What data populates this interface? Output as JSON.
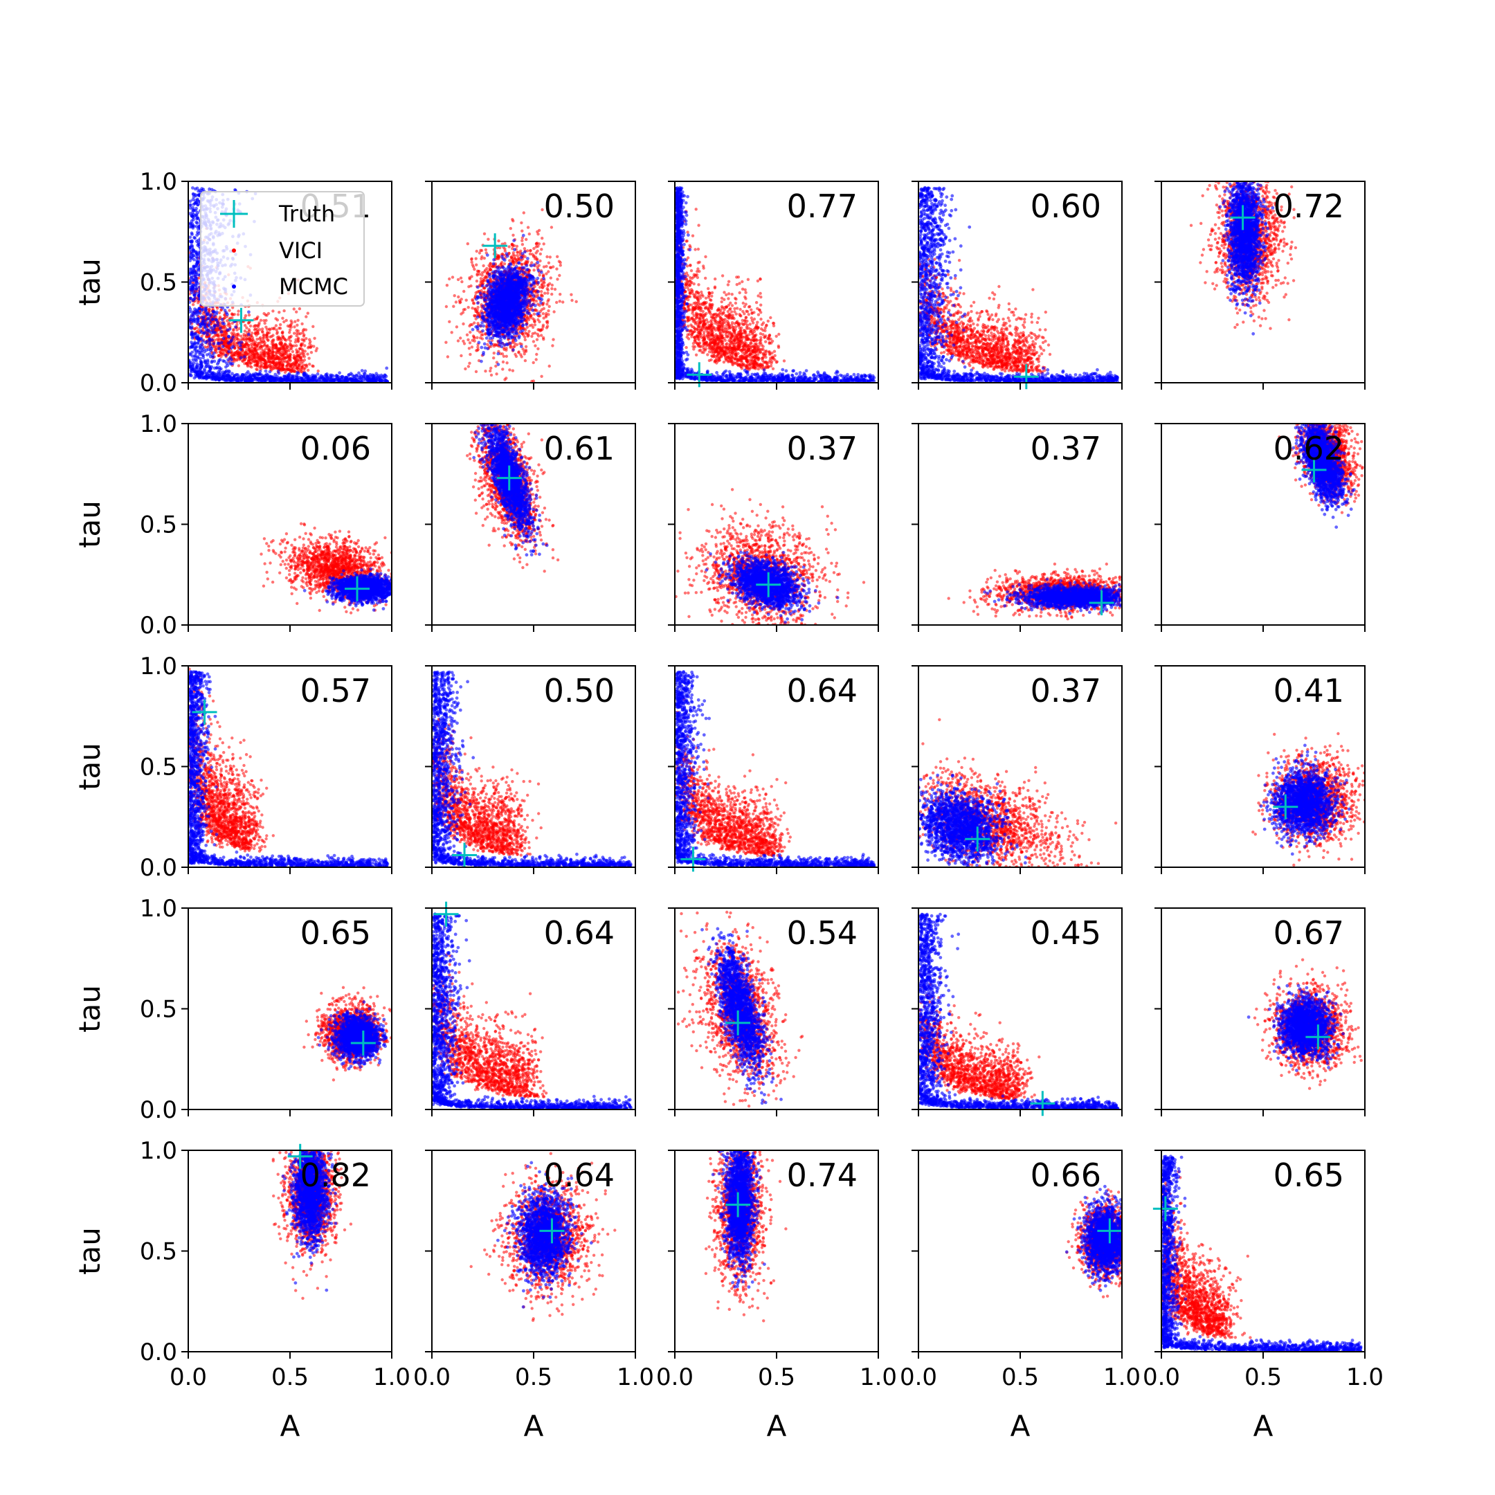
{
  "chart_data": {
    "type": "scatter",
    "layout": {
      "rows": 5,
      "cols": 5
    },
    "xlabel": "A",
    "ylabel": "tau",
    "xlim": [
      0.0,
      1.0
    ],
    "ylim": [
      0.0,
      1.0
    ],
    "xticks": [
      "0.0",
      "0.5",
      "1.0"
    ],
    "yticks": [
      "0.0",
      "0.5",
      "1.0"
    ],
    "legend": {
      "placement": "upper-left of first panel",
      "entries": [
        {
          "label": "Truth",
          "marker": "plus",
          "color": "#00bfbf"
        },
        {
          "label": "VICI",
          "marker": "dot",
          "color": "#ff0000"
        },
        {
          "label": "MCMC",
          "marker": "dot",
          "color": "#0000ff"
        }
      ]
    },
    "series_colors": {
      "truth": "#00bfbf",
      "vici": "#ff0000",
      "mcmc": "#0000ff"
    },
    "panels": [
      {
        "label": "0.51",
        "truth": [
          0.26,
          0.31
        ],
        "vici": {
          "shape": "lblob",
          "cx": 0.3,
          "cy": 0.3,
          "sx": 0.2,
          "sy": 0.2,
          "r": 0
        },
        "mcmc": {
          "shape": "lcurve",
          "cx": 0.1,
          "cy": 0.3,
          "sx": 0.15,
          "sy": 0.2,
          "r": 0
        }
      },
      {
        "label": "0.50",
        "truth": [
          0.31,
          0.68
        ],
        "vici": {
          "shape": "blob",
          "cx": 0.38,
          "cy": 0.42,
          "sx": 0.1,
          "sy": 0.14,
          "r": -0.2
        },
        "mcmc": {
          "shape": "blob",
          "cx": 0.37,
          "cy": 0.4,
          "sx": 0.05,
          "sy": 0.09,
          "r": -0.3
        }
      },
      {
        "label": "0.77",
        "truth": [
          0.12,
          0.04
        ],
        "vici": {
          "shape": "lblob",
          "cx": 0.2,
          "cy": 0.4,
          "sx": 0.18,
          "sy": 0.25,
          "r": 0
        },
        "mcmc": {
          "shape": "lcurve",
          "cx": 0.03,
          "cy": 0.5,
          "sx": 0.03,
          "sy": 0.3,
          "r": 0
        }
      },
      {
        "label": "0.60",
        "truth": [
          0.53,
          0.03
        ],
        "vici": {
          "shape": "lblob",
          "cx": 0.3,
          "cy": 0.3,
          "sx": 0.2,
          "sy": 0.2,
          "r": 0
        },
        "mcmc": {
          "shape": "lcurve",
          "cx": 0.08,
          "cy": 0.4,
          "sx": 0.1,
          "sy": 0.25,
          "r": 0
        }
      },
      {
        "label": "0.72",
        "truth": [
          0.4,
          0.82
        ],
        "vici": {
          "shape": "blob",
          "cx": 0.43,
          "cy": 0.72,
          "sx": 0.08,
          "sy": 0.15,
          "r": 0
        },
        "mcmc": {
          "shape": "blob",
          "cx": 0.41,
          "cy": 0.75,
          "sx": 0.04,
          "sy": 0.14,
          "r": 0
        }
      },
      {
        "label": "0.06",
        "truth": [
          0.83,
          0.18
        ],
        "vici": {
          "shape": "blob",
          "cx": 0.72,
          "cy": 0.28,
          "sx": 0.12,
          "sy": 0.07,
          "r": -0.2
        },
        "mcmc": {
          "shape": "blob",
          "cx": 0.86,
          "cy": 0.18,
          "sx": 0.07,
          "sy": 0.03,
          "r": 0
        }
      },
      {
        "label": "0.61",
        "truth": [
          0.38,
          0.73
        ],
        "vici": {
          "shape": "blob",
          "cx": 0.37,
          "cy": 0.72,
          "sx": 0.06,
          "sy": 0.16,
          "r": 0.3
        },
        "mcmc": {
          "shape": "blob",
          "cx": 0.38,
          "cy": 0.73,
          "sx": 0.035,
          "sy": 0.13,
          "r": 0.3
        }
      },
      {
        "label": "0.37",
        "truth": [
          0.46,
          0.2
        ],
        "vici": {
          "shape": "blob",
          "cx": 0.42,
          "cy": 0.25,
          "sx": 0.15,
          "sy": 0.12,
          "r": -0.35
        },
        "mcmc": {
          "shape": "blob",
          "cx": 0.45,
          "cy": 0.2,
          "sx": 0.08,
          "sy": 0.05,
          "r": -0.4
        }
      },
      {
        "label": "0.37",
        "truth": [
          0.9,
          0.11
        ],
        "vici": {
          "shape": "blob",
          "cx": 0.72,
          "cy": 0.16,
          "sx": 0.17,
          "sy": 0.045,
          "r": 0
        },
        "mcmc": {
          "shape": "blob",
          "cx": 0.76,
          "cy": 0.14,
          "sx": 0.12,
          "sy": 0.025,
          "r": 0
        }
      },
      {
        "label": "0.62",
        "truth": [
          0.75,
          0.77
        ],
        "vici": {
          "shape": "blob",
          "cx": 0.82,
          "cy": 0.85,
          "sx": 0.06,
          "sy": 0.11,
          "r": 0.3
        },
        "mcmc": {
          "shape": "blob",
          "cx": 0.79,
          "cy": 0.82,
          "sx": 0.04,
          "sy": 0.1,
          "r": 0.3
        }
      },
      {
        "label": "0.57",
        "truth": [
          0.08,
          0.77
        ],
        "vici": {
          "shape": "lblob",
          "cx": 0.15,
          "cy": 0.45,
          "sx": 0.12,
          "sy": 0.3,
          "r": 0
        },
        "mcmc": {
          "shape": "lcurve",
          "cx": 0.08,
          "cy": 0.5,
          "sx": 0.06,
          "sy": 0.3,
          "r": 0
        }
      },
      {
        "label": "0.50",
        "truth": [
          0.16,
          0.06
        ],
        "vici": {
          "shape": "lblob",
          "cx": 0.22,
          "cy": 0.35,
          "sx": 0.15,
          "sy": 0.25,
          "r": 0
        },
        "mcmc": {
          "shape": "lcurve",
          "cx": 0.06,
          "cy": 0.4,
          "sx": 0.08,
          "sy": 0.28,
          "r": 0
        }
      },
      {
        "label": "0.64",
        "truth": [
          0.09,
          0.04
        ],
        "vici": {
          "shape": "lblob",
          "cx": 0.25,
          "cy": 0.35,
          "sx": 0.18,
          "sy": 0.22,
          "r": 0
        },
        "mcmc": {
          "shape": "lcurve",
          "cx": 0.05,
          "cy": 0.4,
          "sx": 0.07,
          "sy": 0.28,
          "r": 0
        }
      },
      {
        "label": "0.37",
        "truth": [
          0.29,
          0.14
        ],
        "vici": {
          "shape": "blob",
          "cx": 0.35,
          "cy": 0.22,
          "sx": 0.2,
          "sy": 0.1,
          "r": -0.4
        },
        "mcmc": {
          "shape": "blob",
          "cx": 0.2,
          "cy": 0.2,
          "sx": 0.1,
          "sy": 0.08,
          "r": -0.4
        }
      },
      {
        "label": "0.41",
        "truth": [
          0.61,
          0.3
        ],
        "vici": {
          "shape": "blob",
          "cx": 0.75,
          "cy": 0.33,
          "sx": 0.1,
          "sy": 0.1,
          "r": 0
        },
        "mcmc": {
          "shape": "blob",
          "cx": 0.7,
          "cy": 0.32,
          "sx": 0.07,
          "sy": 0.08,
          "r": 0
        }
      },
      {
        "label": "0.65",
        "truth": [
          0.86,
          0.33
        ],
        "vici": {
          "shape": "blob",
          "cx": 0.8,
          "cy": 0.38,
          "sx": 0.07,
          "sy": 0.07,
          "r": -0.3
        },
        "mcmc": {
          "shape": "blob",
          "cx": 0.83,
          "cy": 0.36,
          "sx": 0.05,
          "sy": 0.05,
          "r": -0.3
        }
      },
      {
        "label": "0.64",
        "truth": [
          0.07,
          0.97
        ],
        "vici": {
          "shape": "lblob",
          "cx": 0.25,
          "cy": 0.35,
          "sx": 0.18,
          "sy": 0.25,
          "r": 0
        },
        "mcmc": {
          "shape": "lcurve",
          "cx": 0.05,
          "cy": 0.4,
          "sx": 0.08,
          "sy": 0.3,
          "r": 0
        }
      },
      {
        "label": "0.54",
        "truth": [
          0.31,
          0.43
        ],
        "vici": {
          "shape": "blob",
          "cx": 0.32,
          "cy": 0.48,
          "sx": 0.09,
          "sy": 0.18,
          "r": 0.25
        },
        "mcmc": {
          "shape": "blob",
          "cx": 0.32,
          "cy": 0.5,
          "sx": 0.04,
          "sy": 0.15,
          "r": 0.25
        }
      },
      {
        "label": "0.45",
        "truth": [
          0.61,
          0.03
        ],
        "vici": {
          "shape": "lblob",
          "cx": 0.25,
          "cy": 0.3,
          "sx": 0.18,
          "sy": 0.2,
          "r": 0
        },
        "mcmc": {
          "shape": "lcurve",
          "cx": 0.06,
          "cy": 0.4,
          "sx": 0.08,
          "sy": 0.28,
          "r": 0
        }
      },
      {
        "label": "0.67",
        "truth": [
          0.77,
          0.36
        ],
        "vici": {
          "shape": "blob",
          "cx": 0.73,
          "cy": 0.4,
          "sx": 0.09,
          "sy": 0.1,
          "r": 0
        },
        "mcmc": {
          "shape": "blob",
          "cx": 0.71,
          "cy": 0.41,
          "sx": 0.06,
          "sy": 0.07,
          "r": 0
        }
      },
      {
        "label": "0.82",
        "truth": [
          0.55,
          0.97
        ],
        "vici": {
          "shape": "blob",
          "cx": 0.6,
          "cy": 0.78,
          "sx": 0.06,
          "sy": 0.13,
          "r": 0
        },
        "mcmc": {
          "shape": "blob",
          "cx": 0.6,
          "cy": 0.8,
          "sx": 0.04,
          "sy": 0.12,
          "r": 0
        }
      },
      {
        "label": "0.64",
        "truth": [
          0.59,
          0.6
        ],
        "vici": {
          "shape": "blob",
          "cx": 0.57,
          "cy": 0.57,
          "sx": 0.1,
          "sy": 0.13,
          "r": 0
        },
        "mcmc": {
          "shape": "blob",
          "cx": 0.55,
          "cy": 0.58,
          "sx": 0.06,
          "sy": 0.1,
          "r": 0
        }
      },
      {
        "label": "0.74",
        "truth": [
          0.31,
          0.73
        ],
        "vici": {
          "shape": "blob",
          "cx": 0.32,
          "cy": 0.7,
          "sx": 0.06,
          "sy": 0.18,
          "r": 0
        },
        "mcmc": {
          "shape": "blob",
          "cx": 0.32,
          "cy": 0.75,
          "sx": 0.035,
          "sy": 0.15,
          "r": 0
        }
      },
      {
        "label": "0.66",
        "truth": [
          0.94,
          0.6
        ],
        "vici": {
          "shape": "blob",
          "cx": 0.92,
          "cy": 0.55,
          "sx": 0.06,
          "sy": 0.09,
          "r": 0
        },
        "mcmc": {
          "shape": "blob",
          "cx": 0.92,
          "cy": 0.56,
          "sx": 0.05,
          "sy": 0.08,
          "r": 0
        }
      },
      {
        "label": "0.65",
        "truth": [
          0.02,
          0.71
        ],
        "vici": {
          "shape": "lblob",
          "cx": 0.18,
          "cy": 0.5,
          "sx": 0.1,
          "sy": 0.25,
          "r": 0
        },
        "mcmc": {
          "shape": "lcurve",
          "cx": 0.04,
          "cy": 0.5,
          "sx": 0.05,
          "sy": 0.3,
          "r": 0
        }
      }
    ]
  }
}
